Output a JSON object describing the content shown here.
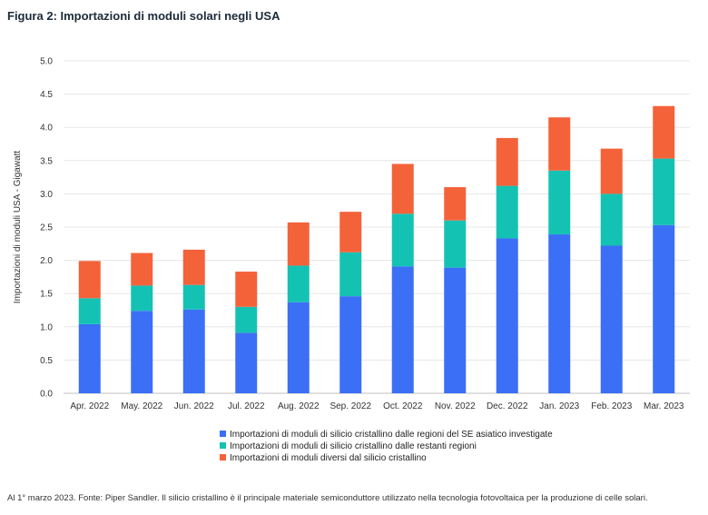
{
  "title": "Figura 2: Importazioni di moduli solari negli USA",
  "footnote": "Al 1° marzo 2023. Fonte: Piper Sandler. Il silicio cristallino è il principale materiale semiconduttore utilizzato nella tecnologia fotovoltaica per la produzione di celle solari.",
  "chart_data": {
    "type": "bar",
    "stacked": true,
    "title": "",
    "xlabel": "",
    "ylabel": "Importazioni di moduli USA - Gigawatt",
    "ylim": [
      0,
      5
    ],
    "yticks": [
      "0.0",
      "0.5",
      "1.0",
      "1.5",
      "2.0",
      "2.5",
      "3.0",
      "3.5",
      "4.0",
      "4.5",
      "5.0"
    ],
    "grid": true,
    "legend_position": "bottom",
    "categories": [
      "Apr. 2022",
      "May. 2022",
      "Jun. 2022",
      "Jul. 2022",
      "Aug. 2022",
      "Sep. 2022",
      "Oct. 2022",
      "Nov. 2022",
      "Dec. 2022",
      "Jan. 2023",
      "Feb. 2023",
      "Mar. 2023"
    ],
    "series": [
      {
        "name": "Importazioni di moduli di silicio cristallino dalle regioni del SE asiatico investigate",
        "color": "#3b6ff5",
        "values": [
          1.04,
          1.24,
          1.26,
          0.91,
          1.37,
          1.46,
          1.91,
          1.89,
          2.33,
          2.39,
          2.22,
          2.53
        ]
      },
      {
        "name": "Importazioni di moduli di silicio cristallino dalle restanti regioni",
        "color": "#14c2b4",
        "values": [
          0.39,
          0.38,
          0.37,
          0.39,
          0.55,
          0.66,
          0.79,
          0.71,
          0.79,
          0.96,
          0.78,
          1.0
        ]
      },
      {
        "name": "Importazioni di moduli diversi dal silicio cristallino",
        "color": "#f4623a",
        "values": [
          0.56,
          0.49,
          0.53,
          0.53,
          0.65,
          0.61,
          0.75,
          0.5,
          0.72,
          0.8,
          0.68,
          0.79
        ]
      }
    ]
  }
}
